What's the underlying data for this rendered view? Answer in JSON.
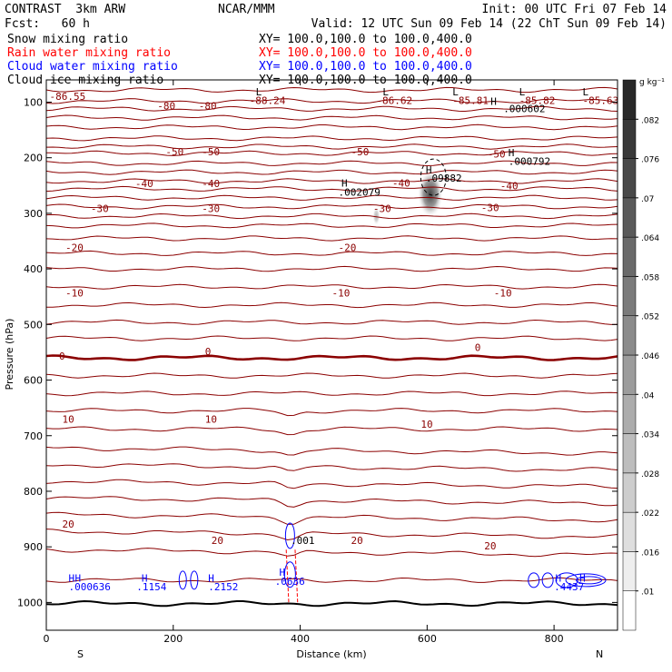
{
  "header": {
    "title": "CONTRAST  3km ARW",
    "fcst": "Fcst:   60 h",
    "center": "NCAR/MMM",
    "init": "Init: 00 UTC Fri 07 Feb 14",
    "valid": "Valid: 12 UTC Sun 09 Feb 14 (22 ChT Sun 09 Feb 14)",
    "fields": [
      {
        "name": "Snow mixing ratio",
        "xy": "XY= 100.0,100.0 to 100.0,400.0",
        "color": "#000000"
      },
      {
        "name": "Rain water mixing ratio",
        "xy": "XY= 100.0,100.0 to 100.0,400.0",
        "color": "#ff0000"
      },
      {
        "name": "Cloud water mixing ratio",
        "xy": "XY= 100.0,100.0 to 100.0,400.0",
        "color": "#0000ff"
      },
      {
        "name": "Cloud ice mixing ratio",
        "xy": "XY= 100.0,100.0 to 100.0,400.0",
        "color": "#000000"
      }
    ]
  },
  "colors": {
    "temperature": "#8b0000",
    "rain": "#ff0000",
    "cloud": "#0000ff",
    "ice": "#000000"
  },
  "chart_data": {
    "type": "contour",
    "xlabel": "Distance (km)",
    "ylabel": "Pressure (hPa)",
    "xlim": [
      0,
      900
    ],
    "ylim": [
      1050,
      60
    ],
    "x_ticks": [
      "0",
      "200",
      "400",
      "600",
      "800"
    ],
    "y_ticks": [
      "100",
      "200",
      "300",
      "400",
      "500",
      "600",
      "700",
      "800",
      "900",
      "1000"
    ],
    "x_tick_values": [
      0,
      200,
      400,
      600,
      800
    ],
    "y_tick_values": [
      100,
      200,
      300,
      400,
      500,
      600,
      700,
      800,
      900,
      1000
    ],
    "ends": {
      "left": "S",
      "right": "N"
    },
    "isotherm_pressures": [
      78,
      98,
      112,
      128,
      145,
      165,
      180,
      192,
      210,
      226,
      242,
      256,
      272,
      288,
      305,
      322,
      345,
      372,
      400,
      432,
      465,
      496,
      525,
      560,
      592,
      624,
      655,
      688,
      722,
      752,
      782,
      812,
      842,
      872,
      905,
      960,
      1002
    ],
    "freezing_level_pressure": 560,
    "contour_labels": [
      {
        "text": "-86.55",
        "x": 5,
        "p": 96
      },
      {
        "text": "-80",
        "x": 175,
        "p": 113
      },
      {
        "text": "-80",
        "x": 240,
        "p": 113
      },
      {
        "text": "L",
        "x": 330,
        "p": 88
      },
      {
        "text": "-88.24",
        "x": 320,
        "p": 103
      },
      {
        "text": "L",
        "x": 530,
        "p": 88
      },
      {
        "text": "-86.62",
        "x": 520,
        "p": 103
      },
      {
        "text": "L",
        "x": 640,
        "p": 88
      },
      {
        "text": "-85.81",
        "x": 640,
        "p": 103
      },
      {
        "text": "L",
        "x": 745,
        "p": 88
      },
      {
        "text": "H",
        "x": 700,
        "p": 105
      },
      {
        "text": "-85.82",
        "x": 745,
        "p": 103
      },
      {
        "text": "L",
        "x": 845,
        "p": 88
      },
      {
        "text": "-85.63",
        "x": 845,
        "p": 103
      },
      {
        "text": ".000602",
        "x": 720,
        "p": 118
      },
      {
        "text": "-50",
        "x": 188,
        "p": 196
      },
      {
        "text": "-50",
        "x": 245,
        "p": 196
      },
      {
        "text": "-50",
        "x": 480,
        "p": 196
      },
      {
        "text": "-50",
        "x": 695,
        "p": 200
      },
      {
        "text": "H",
        "x": 728,
        "p": 197
      },
      {
        "text": ".000792",
        "x": 728,
        "p": 213
      },
      {
        "text": "-40",
        "x": 140,
        "p": 253
      },
      {
        "text": "-40",
        "x": 245,
        "p": 253
      },
      {
        "text": "H",
        "x": 465,
        "p": 252
      },
      {
        "text": "-40",
        "x": 545,
        "p": 252
      },
      {
        "text": "H",
        "x": 598,
        "p": 228
      },
      {
        "text": ".09882",
        "x": 598,
        "p": 243
      },
      {
        "text": ".002079",
        "x": 460,
        "p": 268
      },
      {
        "text": "-40",
        "x": 715,
        "p": 257
      },
      {
        "text": "-30",
        "x": 70,
        "p": 298
      },
      {
        "text": "-30",
        "x": 245,
        "p": 298
      },
      {
        "text": "-30",
        "x": 515,
        "p": 298
      },
      {
        "text": "-30",
        "x": 685,
        "p": 296
      },
      {
        "text": "-20",
        "x": 30,
        "p": 368
      },
      {
        "text": "-20",
        "x": 460,
        "p": 368
      },
      {
        "text": "-10",
        "x": 30,
        "p": 450
      },
      {
        "text": "-10",
        "x": 450,
        "p": 450
      },
      {
        "text": "-10",
        "x": 705,
        "p": 450
      },
      {
        "text": "0",
        "x": 20,
        "p": 563
      },
      {
        "text": "0",
        "x": 250,
        "p": 555
      },
      {
        "text": "0",
        "x": 675,
        "p": 548
      },
      {
        "text": "10",
        "x": 25,
        "p": 677
      },
      {
        "text": "10",
        "x": 250,
        "p": 677
      },
      {
        "text": "10",
        "x": 590,
        "p": 686
      },
      {
        "text": "20",
        "x": 25,
        "p": 865
      },
      {
        "text": "20",
        "x": 260,
        "p": 895
      },
      {
        "text": "20",
        "x": 480,
        "p": 895
      },
      {
        "text": "20",
        "x": 690,
        "p": 905
      },
      {
        "text": ".001",
        "x": 385,
        "p": 895
      }
    ],
    "cloud_water_labels": [
      {
        "text": "H",
        "x": 35,
        "p": 963
      },
      {
        "text": "H",
        "x": 45,
        "p": 963
      },
      {
        "text": ".000636",
        "x": 35,
        "p": 978
      },
      {
        "text": "H",
        "x": 150,
        "p": 963
      },
      {
        "text": ".1154",
        "x": 142,
        "p": 978
      },
      {
        "text": "H",
        "x": 255,
        "p": 963
      },
      {
        "text": ".2152",
        "x": 255,
        "p": 978
      },
      {
        "text": "H",
        "x": 367,
        "p": 952
      },
      {
        "text": ".0636",
        "x": 360,
        "p": 968
      },
      {
        "text": "H",
        "x": 802,
        "p": 963
      },
      {
        "text": "H",
        "x": 840,
        "p": 963
      },
      {
        "text": ".4437",
        "x": 800,
        "p": 978
      }
    ],
    "colorbar": {
      "unit": "g kg⁻¹",
      "levels": [
        ".01",
        ".016",
        ".022",
        ".028",
        ".034",
        ".04",
        ".046",
        ".052",
        ".058",
        ".064",
        ".07",
        ".076",
        ".082"
      ]
    }
  }
}
